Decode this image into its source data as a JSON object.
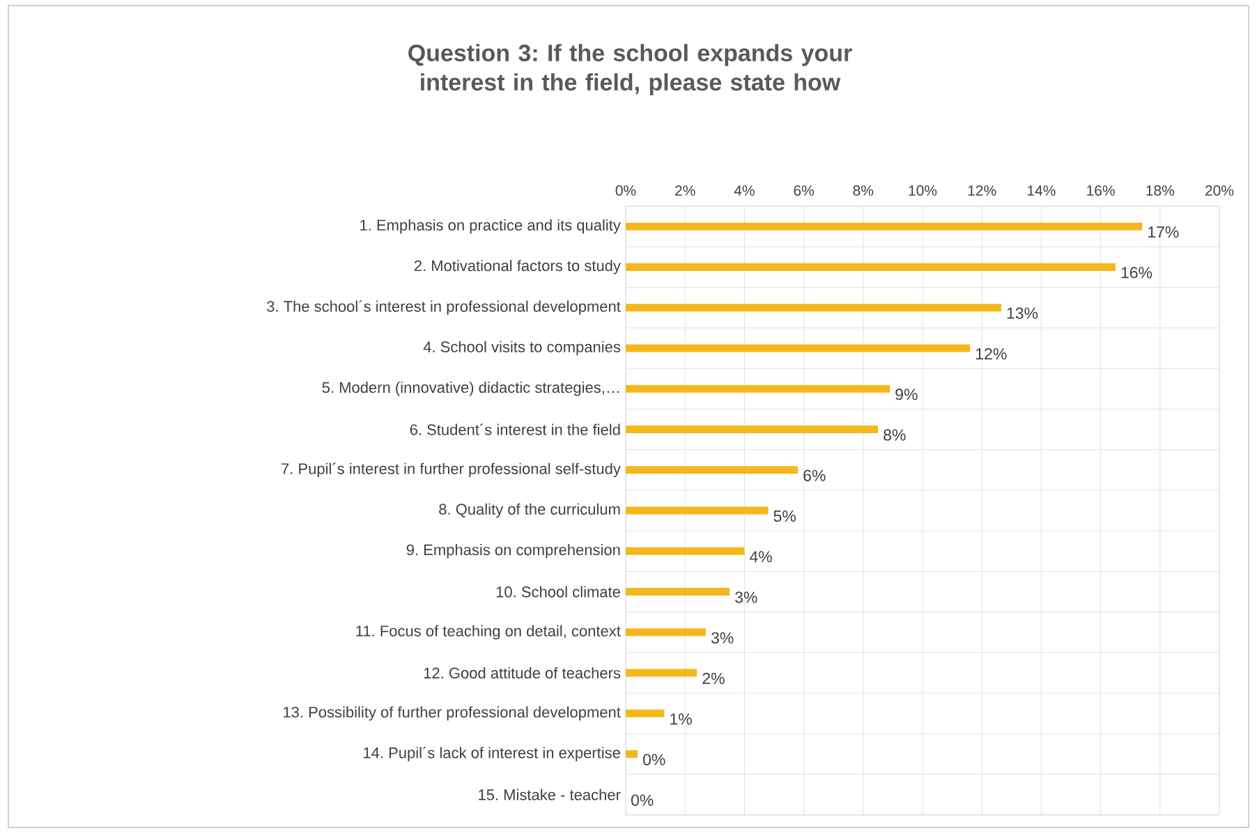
{
  "chart_data": {
    "type": "bar",
    "orientation": "horizontal",
    "title": "Question 3: If the school expands your interest in the field, please state how",
    "categories": [
      "1. Emphasis on practice and its quality",
      "2. Motivational factors to study",
      "3. The school´s interest in professional development",
      "4. School visits to companies",
      "5. Modern (innovative) didactic strategies,…",
      "6. Student´s interest in the field",
      "7. Pupil´s interest in further professional self-study",
      "8. Quality of the curriculum",
      "9. Emphasis on comprehension",
      "10. School climate",
      "11. Focus of teaching on detail, context",
      "12. Good attitude of teachers",
      "13. Possibility of further professional development",
      "14. Pupil´s lack of interest in expertise",
      "15. Mistake - teacher"
    ],
    "values": [
      17.4,
      16.5,
      12.65,
      11.6,
      8.9,
      8.5,
      5.8,
      4.8,
      4.0,
      3.5,
      2.7,
      2.4,
      1.3,
      0.4,
      0
    ],
    "value_labels": [
      "17%",
      "16%",
      "13%",
      "12%",
      "9%",
      "8%",
      "6%",
      "5%",
      "4%",
      "3%",
      "3%",
      "2%",
      "1%",
      "0%",
      "0%"
    ],
    "color": "#f4b81c",
    "xlim": [
      0,
      20
    ],
    "xticks": [
      {
        "value": 0,
        "label": "0%"
      },
      {
        "value": 2,
        "label": "2%"
      },
      {
        "value": 4,
        "label": "4%"
      },
      {
        "value": 6,
        "label": "6%"
      },
      {
        "value": 8,
        "label": "8%"
      },
      {
        "value": 10,
        "label": "10%"
      },
      {
        "value": 12,
        "label": "12%"
      },
      {
        "value": 14,
        "label": "14%"
      },
      {
        "value": 16,
        "label": "16%"
      },
      {
        "value": 18,
        "label": "18%"
      },
      {
        "value": 20,
        "label": "20%"
      }
    ],
    "grid": true
  }
}
